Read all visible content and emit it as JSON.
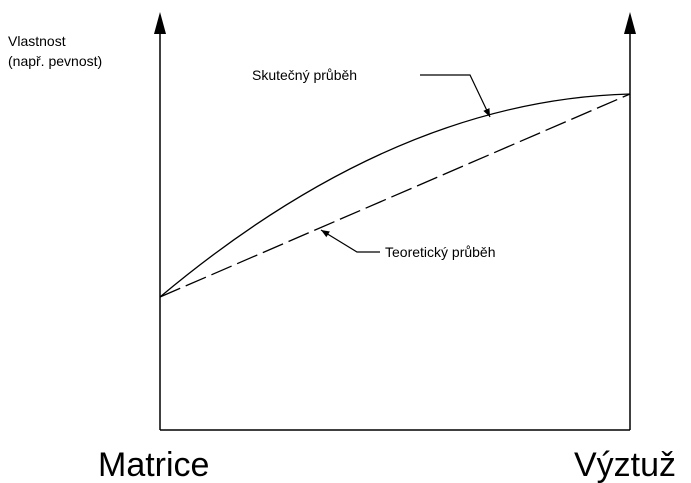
{
  "axis": {
    "y_label_line1": "Vlastnost",
    "y_label_line2": "(např. pevnost)",
    "left_end": "Matrice",
    "right_end": "Výztuž"
  },
  "curves": {
    "actual": "Skutečný průběh",
    "theoretical": "Teoretický průběh"
  }
}
